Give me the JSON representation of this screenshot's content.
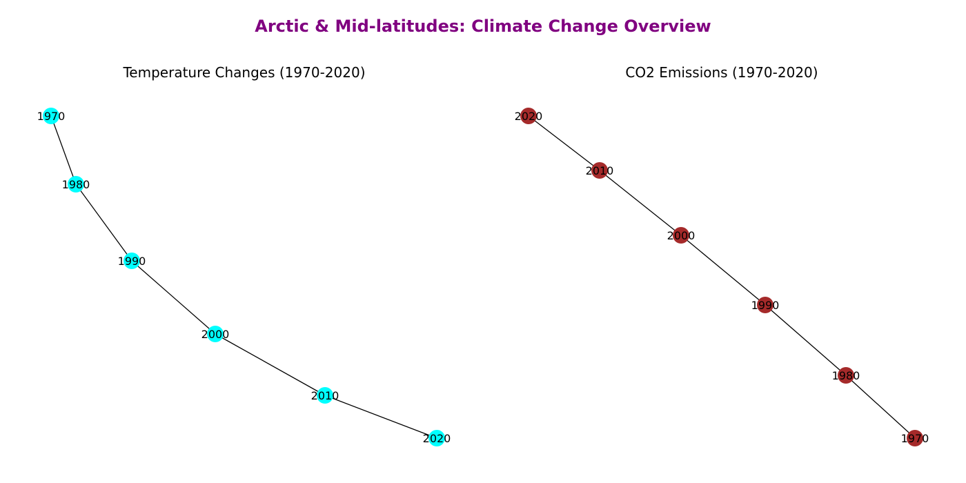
{
  "figure": {
    "title": "Arctic & Mid-latitudes: Climate Change Overview",
    "title_color": "#800080"
  },
  "panels": [
    {
      "title": "Temperature Changes (1970-2020)",
      "node_color": "#00FFFF",
      "edge_color": "#000000",
      "nodes": [
        "1970",
        "1980",
        "1990",
        "2000",
        "2010",
        "2020"
      ],
      "edges": [
        [
          "1970",
          "1980"
        ],
        [
          "1980",
          "1990"
        ],
        [
          "1990",
          "2000"
        ],
        [
          "2000",
          "2010"
        ],
        [
          "2010",
          "2020"
        ]
      ]
    },
    {
      "title": "CO2 Emissions (1970-2020)",
      "node_color": "#A52A2A",
      "edge_color": "#000000",
      "nodes": [
        "2020",
        "2010",
        "2000",
        "1990",
        "1980",
        "1970"
      ],
      "edges": [
        [
          "2020",
          "2010"
        ],
        [
          "2010",
          "2000"
        ],
        [
          "2000",
          "1990"
        ],
        [
          "1990",
          "1980"
        ],
        [
          "1980",
          "1970"
        ]
      ]
    }
  ]
}
